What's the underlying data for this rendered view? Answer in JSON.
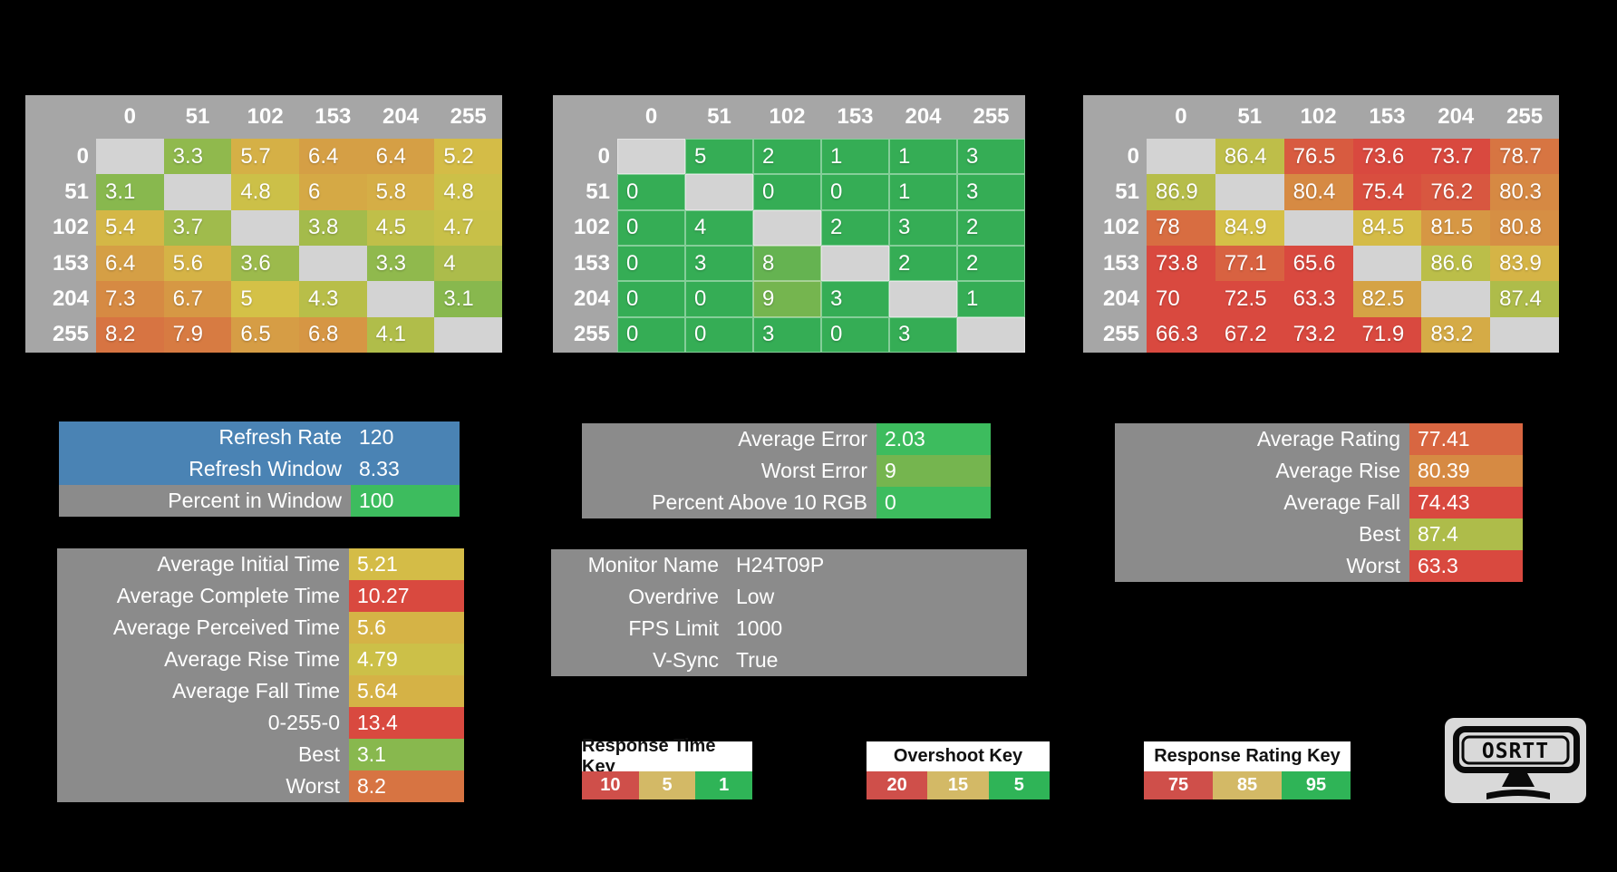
{
  "colors": {
    "background": "#000000",
    "table_header_bg": "#a6a6a6",
    "diagonal_bg": "#d3d3d3",
    "panel_gray": "#8b8b8b",
    "panel_blue": "#4a83b4",
    "value_green": "#3dbc5e",
    "cmap_green": "#35ad55",
    "cmap_yellow": "#d4c147",
    "cmap_red": "#d9493f",
    "key_red": "#cf4f4a",
    "key_yellow": "#d3b966",
    "key_green": "#2fb457",
    "logo_bg": "#d9d9d9"
  },
  "colormaps": {
    "time": {
      "stops": [
        [
          1,
          "#35ad55"
        ],
        [
          5,
          "#d4c147"
        ],
        [
          10,
          "#d9493f"
        ]
      ]
    },
    "overshoot": {
      "stops": [
        [
          5,
          "#35ad55"
        ],
        [
          15,
          "#d4c147"
        ],
        [
          20,
          "#d9493f"
        ]
      ]
    },
    "rating": {
      "stops": [
        [
          75,
          "#d9493f"
        ],
        [
          85,
          "#d4c147"
        ],
        [
          95,
          "#35ad55"
        ]
      ]
    }
  },
  "chart_data": [
    {
      "type": "heatmap",
      "key_label": "Response Time Key",
      "x_labels": [
        "0",
        "51",
        "102",
        "153",
        "204",
        "255"
      ],
      "y_labels": [
        "0",
        "51",
        "102",
        "153",
        "204",
        "255"
      ],
      "values": [
        [
          null,
          3.3,
          5.7,
          6.4,
          6.4,
          5.2
        ],
        [
          3.1,
          null,
          4.8,
          6,
          5.8,
          4.8
        ],
        [
          5.4,
          3.7,
          null,
          3.8,
          4.5,
          4.7
        ],
        [
          6.4,
          5.6,
          3.6,
          null,
          3.3,
          4
        ],
        [
          7.3,
          6.7,
          5,
          4.3,
          null,
          3.1
        ],
        [
          8.2,
          7.9,
          6.5,
          6.8,
          4.1,
          null
        ]
      ],
      "colormap": "time",
      "grid": false
    },
    {
      "type": "heatmap",
      "key_label": "Overshoot Key",
      "x_labels": [
        "0",
        "51",
        "102",
        "153",
        "204",
        "255"
      ],
      "y_labels": [
        "0",
        "51",
        "102",
        "153",
        "204",
        "255"
      ],
      "values": [
        [
          null,
          5,
          2,
          1,
          1,
          3
        ],
        [
          0,
          null,
          0,
          0,
          1,
          3
        ],
        [
          0,
          4,
          null,
          2,
          3,
          2
        ],
        [
          0,
          3,
          8,
          null,
          2,
          2
        ],
        [
          0,
          0,
          9,
          3,
          null,
          1
        ],
        [
          0,
          0,
          3,
          0,
          3,
          null
        ]
      ],
      "colormap": "overshoot",
      "grid": true
    },
    {
      "type": "heatmap",
      "key_label": "Response Rating Key",
      "x_labels": [
        "0",
        "51",
        "102",
        "153",
        "204",
        "255"
      ],
      "y_labels": [
        "0",
        "51",
        "102",
        "153",
        "204",
        "255"
      ],
      "values": [
        [
          null,
          86.4,
          76.5,
          73.6,
          73.7,
          78.7
        ],
        [
          86.9,
          null,
          80.4,
          75.4,
          76.2,
          80.3
        ],
        [
          78,
          84.9,
          null,
          84.5,
          81.5,
          80.8
        ],
        [
          73.8,
          77.1,
          65.6,
          null,
          86.6,
          83.9
        ],
        [
          70,
          72.5,
          63.3,
          82.5,
          null,
          87.4
        ],
        [
          66.3,
          67.2,
          73.2,
          71.9,
          83.2,
          null
        ]
      ],
      "colormap": "rating",
      "grid": false
    }
  ],
  "panels": {
    "refresh": {
      "rows": [
        {
          "label": "Refresh Rate",
          "value": "120",
          "bg": "blue"
        },
        {
          "label": "Refresh Window",
          "value": "8.33",
          "bg": "blue"
        },
        {
          "label": "Percent in Window",
          "value": "100",
          "value_color": "#3dbc5e"
        }
      ]
    },
    "error": {
      "rows": [
        {
          "label": "Average Error",
          "value": "2.03",
          "value_color": "#3dbc5e"
        },
        {
          "label": "Worst Error",
          "value": "9",
          "cmap": "overshoot"
        },
        {
          "label": "Percent Above 10 RGB",
          "value": "0",
          "value_color": "#3dbc5e"
        }
      ]
    },
    "rating": {
      "rows": [
        {
          "label": "Average Rating",
          "value": "77.41",
          "cmap": "rating"
        },
        {
          "label": "Average Rise",
          "value": "80.39",
          "cmap": "rating"
        },
        {
          "label": "Average Fall",
          "value": "74.43",
          "cmap": "rating"
        },
        {
          "label": "Best",
          "value": "87.4",
          "cmap": "rating"
        },
        {
          "label": "Worst",
          "value": "63.3",
          "cmap": "rating"
        }
      ]
    },
    "times": {
      "rows": [
        {
          "label": "Average Initial Time",
          "value": "5.21",
          "cmap": "time"
        },
        {
          "label": "Average Complete Time",
          "value": "10.27",
          "cmap": "time"
        },
        {
          "label": "Average Perceived Time",
          "value": "5.6",
          "cmap": "time"
        },
        {
          "label": "Average Rise Time",
          "value": "4.79",
          "cmap": "time"
        },
        {
          "label": "Average Fall Time",
          "value": "5.64",
          "cmap": "time"
        },
        {
          "label": "0-255-0",
          "value": "13.4",
          "cmap": "time"
        },
        {
          "label": "Best",
          "value": "3.1",
          "cmap": "time"
        },
        {
          "label": "Worst",
          "value": "8.2",
          "cmap": "time"
        }
      ]
    },
    "monitor": {
      "rows": [
        {
          "label": "Monitor Name",
          "value": "H24T09P"
        },
        {
          "label": "Overdrive",
          "value": "Low"
        },
        {
          "label": "FPS Limit",
          "value": "1000"
        },
        {
          "label": "V-Sync",
          "value": "True"
        }
      ]
    }
  },
  "keys": [
    {
      "title": "Response Time Key",
      "cells": [
        {
          "label": "10",
          "color": "#cf4f4a"
        },
        {
          "label": "5",
          "color": "#d3b966"
        },
        {
          "label": "1",
          "color": "#2fb457"
        }
      ]
    },
    {
      "title": "Overshoot Key",
      "cells": [
        {
          "label": "20",
          "color": "#cf4f4a"
        },
        {
          "label": "15",
          "color": "#d3b966"
        },
        {
          "label": "5",
          "color": "#2fb457"
        }
      ]
    },
    {
      "title": "Response Rating Key",
      "cells": [
        {
          "label": "75",
          "color": "#cf4f4a"
        },
        {
          "label": "85",
          "color": "#d3b966"
        },
        {
          "label": "95",
          "color": "#2fb457"
        }
      ]
    }
  ],
  "logo": {
    "text": "OSRTT"
  }
}
